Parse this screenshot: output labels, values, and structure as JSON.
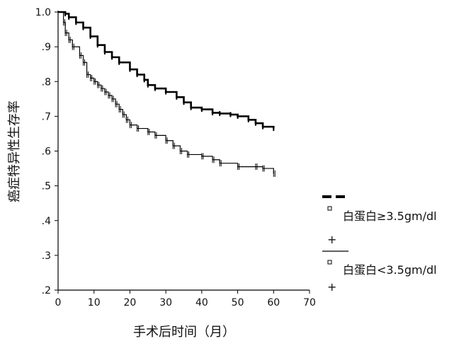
{
  "chart_data": {
    "type": "line",
    "ylabel": "癌症特异性生存率",
    "xlabel": "手术后时间（月）",
    "xlim": [
      0,
      70
    ],
    "ylim": [
      0.2,
      1.0
    ],
    "xticks": [
      "0",
      "10",
      "20",
      "30",
      "40",
      "50",
      "60",
      "70"
    ],
    "yticks": [
      ".2",
      ".3",
      ".4",
      ".5",
      ".6",
      ".7",
      ".8",
      ".9",
      "1.0"
    ],
    "grid": false,
    "legend_position": "right",
    "series": [
      {
        "name": "白蛋白≥3.5gm/dl",
        "style": "thick",
        "color": "#000000",
        "x": [
          0,
          2,
          3,
          5,
          7,
          9,
          11,
          13,
          15,
          17,
          20,
          22,
          24,
          25,
          27,
          30,
          33,
          35,
          37,
          40,
          43,
          45,
          48,
          50,
          53,
          55,
          57,
          60
        ],
        "y": [
          1.0,
          0.995,
          0.985,
          0.97,
          0.955,
          0.93,
          0.905,
          0.885,
          0.87,
          0.855,
          0.835,
          0.82,
          0.805,
          0.79,
          0.78,
          0.77,
          0.755,
          0.74,
          0.725,
          0.72,
          0.71,
          0.708,
          0.705,
          0.7,
          0.69,
          0.68,
          0.67,
          0.665
        ]
      },
      {
        "name": "白蛋白<3.5gm/dl",
        "style": "thin",
        "color": "#000000",
        "x": [
          0,
          1.5,
          2,
          3,
          4,
          6,
          7,
          8,
          9,
          10,
          11,
          12,
          13,
          14,
          15,
          16,
          17,
          18,
          19,
          20,
          22,
          25,
          27,
          30,
          32,
          34,
          36,
          40,
          43,
          45,
          50,
          55,
          57,
          60
        ],
        "y": [
          1.0,
          0.97,
          0.94,
          0.92,
          0.9,
          0.875,
          0.855,
          0.82,
          0.81,
          0.8,
          0.79,
          0.78,
          0.77,
          0.76,
          0.75,
          0.735,
          0.72,
          0.705,
          0.69,
          0.675,
          0.665,
          0.655,
          0.645,
          0.63,
          0.615,
          0.6,
          0.59,
          0.585,
          0.575,
          0.565,
          0.555,
          0.555,
          0.55,
          0.535
        ]
      }
    ]
  }
}
